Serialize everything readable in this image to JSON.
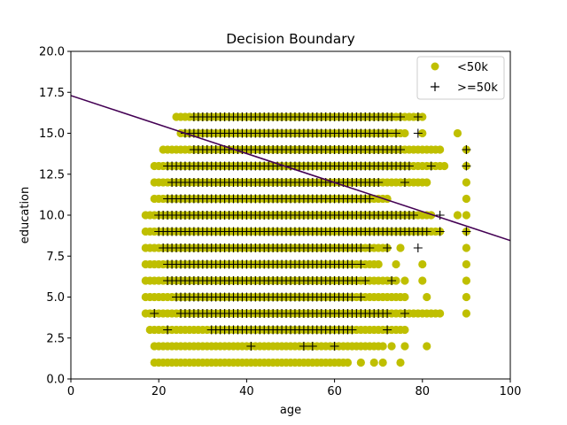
{
  "chart_data": {
    "type": "scatter",
    "title": "Decision Boundary",
    "xlabel": "age",
    "ylabel": "education",
    "xlim": [
      0,
      100
    ],
    "ylim": [
      0,
      20
    ],
    "xticks": [
      0,
      20,
      40,
      60,
      80,
      100
    ],
    "xtick_labels": [
      "0",
      "20",
      "40",
      "60",
      "80",
      "100"
    ],
    "yticks": [
      0,
      2.5,
      5,
      7.5,
      10,
      12.5,
      15,
      17.5,
      20
    ],
    "ytick_labels": [
      "0.0",
      "2.5",
      "5.0",
      "7.5",
      "10.0",
      "12.5",
      "15.0",
      "17.5",
      "20.0"
    ],
    "grid": false,
    "legend_position": "top-right",
    "boundary_line": {
      "x": [
        0,
        100
      ],
      "y": [
        17.3,
        8.45
      ],
      "color": "#440154"
    },
    "series": [
      {
        "name": "<50k",
        "marker": "circle",
        "color": "#bfbf00",
        "rows": [
          {
            "y": 16,
            "x_ranges": [
              [
                24,
                80
              ]
            ]
          },
          {
            "y": 15,
            "x_ranges": [
              [
                25,
                76
              ]
            ],
            "x_points": [
              80,
              88
            ]
          },
          {
            "y": 14,
            "x_ranges": [
              [
                21,
                84
              ]
            ],
            "x_points": [
              90
            ]
          },
          {
            "y": 13,
            "x_ranges": [
              [
                19,
                85
              ]
            ],
            "x_points": [
              90
            ]
          },
          {
            "y": 12,
            "x_ranges": [
              [
                19,
                81
              ]
            ],
            "x_points": [
              90
            ]
          },
          {
            "y": 11,
            "x_ranges": [
              [
                19,
                72
              ]
            ],
            "x_points": [
              90
            ]
          },
          {
            "y": 10,
            "x_ranges": [
              [
                17,
                82
              ]
            ],
            "x_points": [
              88,
              90
            ]
          },
          {
            "y": 9,
            "x_ranges": [
              [
                17,
                84
              ]
            ],
            "x_points": [
              90
            ]
          },
          {
            "y": 8,
            "x_ranges": [
              [
                17,
                72
              ]
            ],
            "x_points": [
              75,
              90
            ]
          },
          {
            "y": 7,
            "x_ranges": [
              [
                17,
                70
              ]
            ],
            "x_points": [
              74,
              80,
              90
            ]
          },
          {
            "y": 6,
            "x_ranges": [
              [
                17,
                74
              ]
            ],
            "x_points": [
              76,
              80,
              90
            ]
          },
          {
            "y": 5,
            "x_ranges": [
              [
                17,
                76
              ]
            ],
            "x_points": [
              81,
              90
            ]
          },
          {
            "y": 4,
            "x_ranges": [
              [
                17,
                84
              ]
            ],
            "x_points": [
              90
            ]
          },
          {
            "y": 3,
            "x_ranges": [
              [
                18,
                76
              ]
            ]
          },
          {
            "y": 2,
            "x_ranges": [
              [
                19,
                71
              ]
            ],
            "x_points": [
              73,
              76,
              81
            ]
          },
          {
            "y": 1,
            "x_ranges": [
              [
                19,
                63
              ]
            ],
            "x_points": [
              66,
              69,
              71,
              75
            ]
          }
        ]
      },
      {
        "name": ">=50k",
        "marker": "plus",
        "color": "#000000",
        "rows": [
          {
            "y": 16,
            "x_ranges": [
              [
                28,
                73
              ]
            ],
            "x_points": [
              75,
              79
            ]
          },
          {
            "y": 15,
            "x_ranges": [
              [
                26,
                72
              ]
            ],
            "x_points": [
              74,
              79
            ]
          },
          {
            "y": 14,
            "x_ranges": [
              [
                28,
                75
              ]
            ],
            "x_points": [
              90
            ]
          },
          {
            "y": 13,
            "x_ranges": [
              [
                22,
                77
              ]
            ],
            "x_points": [
              82,
              90
            ]
          },
          {
            "y": 12,
            "x_ranges": [
              [
                23,
                70
              ]
            ],
            "x_points": [
              76
            ]
          },
          {
            "y": 11,
            "x_ranges": [
              [
                22,
                68
              ]
            ]
          },
          {
            "y": 10,
            "x_ranges": [
              [
                20,
                78
              ]
            ],
            "x_points": [
              84
            ]
          },
          {
            "y": 9,
            "x_ranges": [
              [
                20,
                81
              ]
            ],
            "x_points": [
              84,
              90
            ]
          },
          {
            "y": 8,
            "x_ranges": [
              [
                21,
                66
              ]
            ],
            "x_points": [
              68,
              72,
              79
            ]
          },
          {
            "y": 7,
            "x_ranges": [
              [
                22,
                64
              ]
            ],
            "x_points": [
              66
            ]
          },
          {
            "y": 6,
            "x_ranges": [
              [
                22,
                65
              ]
            ],
            "x_points": [
              67,
              73
            ]
          },
          {
            "y": 5,
            "x_ranges": [
              [
                24,
                64
              ]
            ],
            "x_points": [
              66
            ]
          },
          {
            "y": 4,
            "x_ranges": [
              [
                25,
                72
              ]
            ],
            "x_points": [
              19,
              76
            ]
          },
          {
            "y": 3,
            "x_ranges": [
              [
                32,
                64
              ]
            ],
            "x_points": [
              22,
              72
            ]
          },
          {
            "y": 2,
            "x_points": [
              41,
              53,
              55,
              60
            ]
          }
        ]
      }
    ]
  }
}
